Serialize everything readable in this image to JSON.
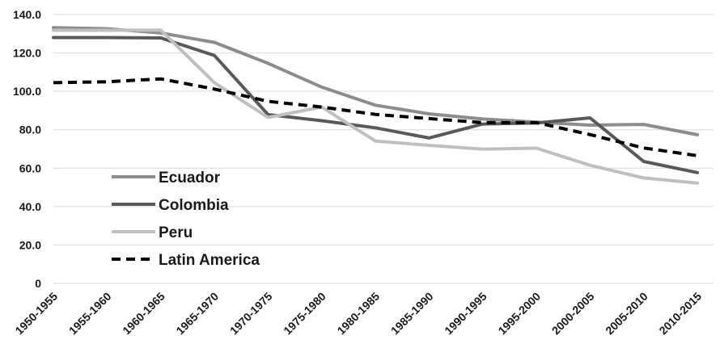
{
  "chart_data": {
    "type": "line",
    "title": "",
    "xlabel": "",
    "ylabel": "",
    "categories": [
      "1950-1955",
      "1955-1960",
      "1960-1965",
      "1965-1970",
      "1970-1975",
      "1975-1980",
      "1980-1985",
      "1985-1990",
      "1990-1995",
      "1995-2000",
      "2000-2005",
      "2005-2010",
      "2010-2015"
    ],
    "ylim": [
      0,
      140
    ],
    "yticks": [
      0,
      20,
      40,
      60,
      80,
      100,
      120,
      140
    ],
    "ytick_labels": [
      "0",
      "20.0",
      "40.0",
      "60.0",
      "80.0",
      "100.0",
      "120.0",
      "140.0"
    ],
    "grid": true,
    "legend_position": "left-center",
    "series": [
      {
        "name": "Ecuador",
        "color": "#8c8c8c",
        "dash": "solid",
        "values": [
          133.2,
          132.6,
          130.4,
          125.5,
          114.6,
          102.2,
          92.8,
          88.3,
          85.6,
          84.0,
          82.4,
          82.8,
          77.4
        ]
      },
      {
        "name": "Colombia",
        "color": "#595959",
        "dash": "solid",
        "values": [
          128.0,
          128.0,
          127.8,
          118.7,
          87.9,
          84.7,
          81.0,
          75.7,
          83.0,
          83.5,
          86.2,
          63.5,
          57.7
        ]
      },
      {
        "name": "Peru",
        "color": "#bfbfbf",
        "dash": "solid",
        "values": [
          131.8,
          131.8,
          131.9,
          104.5,
          86.4,
          91.8,
          74.1,
          71.9,
          69.9,
          70.4,
          61.5,
          54.9,
          52.2
        ]
      },
      {
        "name": "Latin America",
        "color": "#000000",
        "dash": "dashed",
        "values": [
          104.5,
          105.0,
          106.5,
          101.2,
          94.8,
          91.8,
          88.0,
          85.8,
          83.7,
          83.7,
          77.5,
          70.5,
          66.5
        ]
      }
    ]
  }
}
